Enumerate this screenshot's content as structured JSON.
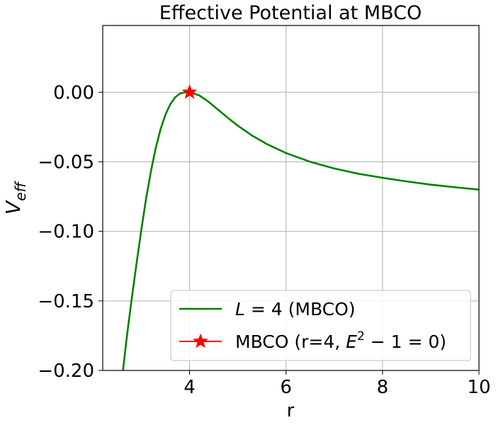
{
  "chart_data": {
    "type": "line",
    "title": "Effective Potential at MBCO",
    "xlabel": "r",
    "ylabel": {
      "main": "V",
      "sub": "eff"
    },
    "xlim": [
      2.2,
      10
    ],
    "ylim": [
      -0.2,
      0.048
    ],
    "xticks": [
      4,
      6,
      8,
      10
    ],
    "xtick_labels": [
      "4",
      "6",
      "8",
      "10"
    ],
    "yticks": [
      0.0,
      -0.05,
      -0.1,
      -0.15,
      -0.2
    ],
    "ytick_labels": [
      "0.00",
      "−0.05",
      "−0.10",
      "−0.15",
      "−0.20"
    ],
    "grid": true,
    "legend_position": "lower-right",
    "series": [
      {
        "name": "L = 4 (MBCO)",
        "legend_parts": {
          "var": "L",
          "eq": " = 4",
          "rest": " (MBCO)"
        },
        "kind": "line",
        "color": "#008000",
        "x": [
          2.62,
          2.7,
          2.8,
          2.9,
          3.0,
          3.1,
          3.2,
          3.3,
          3.4,
          3.5,
          3.6,
          3.7,
          3.8,
          3.9,
          4.0,
          4.2,
          4.4,
          4.6,
          4.8,
          5.0,
          5.3,
          5.6,
          6.0,
          6.5,
          7.0,
          7.5,
          8.0,
          8.5,
          9.0,
          9.5,
          10.0
        ],
        "y": [
          -0.2,
          -0.1755,
          -0.1487,
          -0.1233,
          -0.0988,
          -0.0762,
          -0.0566,
          -0.0399,
          -0.0264,
          -0.0161,
          -0.0086,
          -0.0037,
          -0.0009,
          -0.0001,
          0.0,
          -0.0022,
          -0.007,
          -0.0128,
          -0.0186,
          -0.024,
          -0.0312,
          -0.0372,
          -0.0437,
          -0.05,
          -0.0548,
          -0.0586,
          -0.0615,
          -0.0641,
          -0.0664,
          -0.0683,
          -0.07
        ]
      },
      {
        "name": "MBCO (r=4, E² − 1 = 0)",
        "legend_parts": {
          "prefix": "MBCO (r=4, ",
          "var": "E",
          "sup": "2",
          "rest": " − 1 = 0)"
        },
        "kind": "marker",
        "marker": "star",
        "color": "#ff0000",
        "x": [
          4
        ],
        "y": [
          0.0
        ]
      }
    ]
  }
}
